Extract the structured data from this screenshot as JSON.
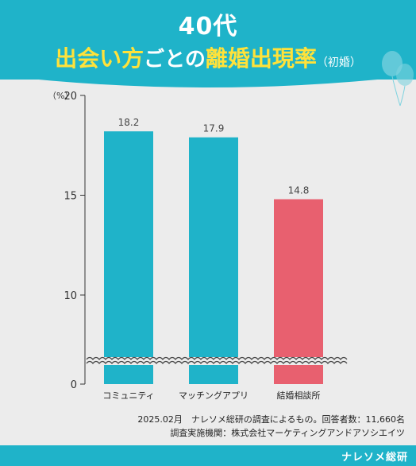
{
  "header": {
    "title_line1": "40代",
    "title_part_yellow": "出会い方",
    "title_part_white1": "ごとの",
    "title_part_yellow2": "離婚出現率",
    "title_part_small": "（初婚）"
  },
  "chart_data": {
    "type": "bar",
    "title": "40代 出会い方ごとの離婚出現率（初婚）",
    "categories": [
      "コミュニティ",
      "マッチングアプリ",
      "結婚相談所"
    ],
    "values": [
      18.2,
      17.9,
      14.8
    ],
    "value_labels": [
      "18.2",
      "17.9",
      "14.8"
    ],
    "colors": [
      "#1fb3c9",
      "#1fb3c9",
      "#e8606f"
    ],
    "y_unit": "（%）",
    "y_ticks": [
      0,
      10,
      15,
      20
    ],
    "ylim": [
      0,
      20
    ],
    "axis_break": true,
    "grid": false
  },
  "notes": {
    "line1": "2025.02月　ナレソメ総研の調査によるもの。回答者数：11,660名",
    "line2": "調査実施機関：株式会社マーケティングアンドアソシエイツ"
  },
  "footer": {
    "brand": "ナレソメ総研"
  }
}
